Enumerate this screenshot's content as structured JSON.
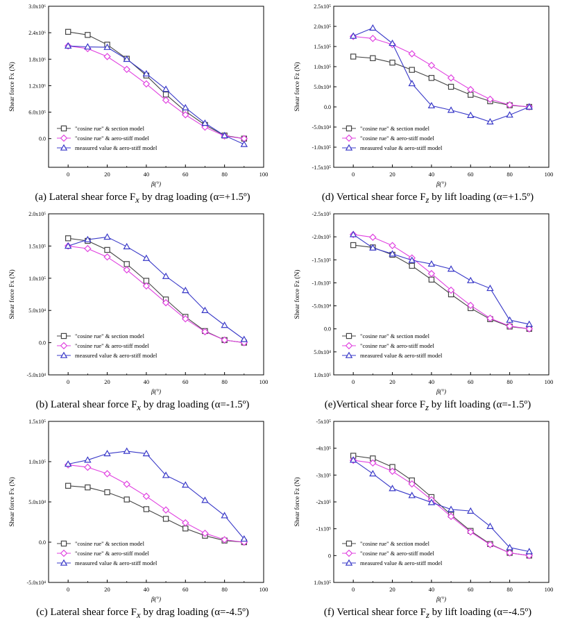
{
  "figure": {
    "series_names": [
      "\"cosine rue\" & section model",
      "\"cosine rue\" & aero-stiff model",
      "measured value & aero-stiff model"
    ],
    "colors": {
      "section": "#444444",
      "aero": "#e040e0",
      "measured": "#3838c8",
      "axis": "#000000"
    }
  },
  "chart_data": [
    {
      "type": "line",
      "id": "a",
      "caption": "(a) Lateral shear force F",
      "caption_sub": "x",
      "caption_tail": " by drag loading (α=+1.5º)",
      "ylabel": "Shear force Fx (N)",
      "xlabel": "β(°)",
      "xlim": [
        -10,
        100
      ],
      "ylim": [
        -650000,
        3000000
      ],
      "xticks": [
        0,
        20,
        40,
        60,
        80,
        100
      ],
      "xtick_labels": [
        "0",
        "20",
        "40",
        "60",
        "80",
        "100"
      ],
      "yticks": [
        0,
        600000,
        1200000,
        1800000,
        2400000,
        3000000
      ],
      "ytick_labels": [
        "0.0",
        "6.0x10⁵",
        "1.2x10⁶",
        "1.8x10⁶",
        "2.4x10⁶",
        "3.0x10⁶"
      ],
      "legend": "bottom-left",
      "x": [
        0,
        10,
        20,
        30,
        40,
        50,
        60,
        70,
        80,
        90
      ],
      "series": [
        {
          "name": "\"cosine rue\" & section model",
          "marker": "square",
          "values": [
            2420000,
            2350000,
            2130000,
            1810000,
            1430000,
            1000000,
            620000,
            310000,
            70000,
            0
          ]
        },
        {
          "name": "\"cosine rue\" & aero-stiff model",
          "marker": "diamond",
          "values": [
            2100000,
            2040000,
            1860000,
            1570000,
            1240000,
            870000,
            540000,
            260000,
            60000,
            0
          ]
        },
        {
          "name": "measured value & aero-stiff model",
          "marker": "triangle",
          "values": [
            2100000,
            2080000,
            2070000,
            1800000,
            1470000,
            1120000,
            700000,
            350000,
            70000,
            -130000
          ]
        }
      ]
    },
    {
      "type": "line",
      "id": "d",
      "caption": "(d) Vertical shear force F",
      "caption_sub": "z",
      "caption_tail": " by lift loading (α=+1.5º)",
      "ylabel": "Shear force Fz (N)",
      "xlabel": "β(°)",
      "xlim": [
        -10,
        100
      ],
      "ylim": [
        -150000,
        250000
      ],
      "xticks": [
        0,
        20,
        40,
        60,
        80,
        100
      ],
      "xtick_labels": [
        "0",
        "20",
        "40",
        "60",
        "80",
        "100"
      ],
      "yticks": [
        -150000,
        -100000,
        -50000,
        0,
        50000,
        100000,
        150000,
        200000,
        250000
      ],
      "ytick_labels": [
        "-1.5x10⁵",
        "-1.0x10⁵",
        "-5.0x10⁴",
        "0.0",
        "5.0x10⁴",
        "1.0x10⁵",
        "1.5x10⁵",
        "2.0x10⁵",
        "2.5x10⁵"
      ],
      "legend": "bottom-left",
      "x": [
        0,
        10,
        20,
        30,
        40,
        50,
        60,
        70,
        80,
        90
      ],
      "series": [
        {
          "name": "\"cosine rue\" & section model",
          "marker": "square",
          "values": [
            125000,
            121000,
            110000,
            92000,
            72000,
            50000,
            30000,
            14000,
            4000,
            0
          ]
        },
        {
          "name": "\"cosine rue\" & aero-stiff model",
          "marker": "diamond",
          "values": [
            175000,
            170000,
            155000,
            132000,
            103000,
            72000,
            43000,
            19000,
            5000,
            0
          ]
        },
        {
          "name": "measured value & aero-stiff model",
          "marker": "triangle",
          "values": [
            176000,
            196000,
            158000,
            58000,
            3000,
            -8000,
            -21000,
            -37000,
            -20000,
            0
          ]
        }
      ]
    },
    {
      "type": "line",
      "id": "b",
      "caption": "(b) Lateral shear force F",
      "caption_sub": "x",
      "caption_tail": " by drag loading (α=-1.5º)",
      "ylabel": "Shear force Fx (N)",
      "xlabel": "β(°)",
      "xlim": [
        -10,
        100
      ],
      "ylim": [
        -50000,
        200000
      ],
      "xticks": [
        0,
        20,
        40,
        60,
        80,
        100
      ],
      "xtick_labels": [
        "0",
        "20",
        "40",
        "60",
        "80",
        "100"
      ],
      "yticks": [
        -50000,
        0,
        50000,
        100000,
        150000,
        200000
      ],
      "ytick_labels": [
        "-5.0x10⁴",
        "0.0",
        "5.0x10⁴",
        "1.0x10⁵",
        "1.5x10⁵",
        "2.0x10⁵"
      ],
      "legend": "bottom-left",
      "x": [
        0,
        10,
        20,
        30,
        40,
        50,
        60,
        70,
        80,
        90
      ],
      "series": [
        {
          "name": "\"cosine rue\" & section model",
          "marker": "square",
          "values": [
            162000,
            158000,
            144000,
            122000,
            96000,
            67000,
            40000,
            18000,
            4000,
            0
          ]
        },
        {
          "name": "\"cosine rue\" & aero-stiff model",
          "marker": "diamond",
          "values": [
            150000,
            146000,
            133000,
            113000,
            88000,
            62000,
            37000,
            17000,
            4000,
            0
          ]
        },
        {
          "name": "measured value & aero-stiff model",
          "marker": "triangle",
          "values": [
            150000,
            160000,
            164000,
            149000,
            131000,
            103000,
            81000,
            50000,
            27000,
            5000
          ]
        }
      ]
    },
    {
      "type": "line",
      "id": "e",
      "caption": "(e)Vertical shear force F",
      "caption_sub": "z",
      "caption_tail": " by lift loading (α=-1.5º)",
      "ylabel": "Shear force Fz (N)",
      "xlabel": "β(°)",
      "xlim": [
        -10,
        100
      ],
      "ylim": [
        100000,
        -250000
      ],
      "xticks": [
        0,
        20,
        40,
        60,
        80,
        100
      ],
      "xtick_labels": [
        "0",
        "20",
        "40",
        "60",
        "80",
        "100"
      ],
      "yticks": [
        100000,
        50000,
        0,
        -50000,
        -100000,
        -150000,
        -200000,
        -250000
      ],
      "ytick_labels": [
        "1.0x10⁵",
        "5.0x10⁴",
        "0.0",
        "-5.0x10⁴",
        "-1.0x10⁵",
        "-1.5x10⁵",
        "-2.0x10⁵",
        "-2.5x10⁵"
      ],
      "legend": "bottom-left",
      "x": [
        0,
        10,
        20,
        30,
        40,
        50,
        60,
        70,
        80,
        90
      ],
      "series": [
        {
          "name": "\"cosine rue\" & section model",
          "marker": "square",
          "values": [
            -182000,
            -177000,
            -161000,
            -137000,
            -107000,
            -75000,
            -45000,
            -21000,
            -5000,
            0
          ]
        },
        {
          "name": "\"cosine rue\" & aero-stiff model",
          "marker": "diamond",
          "values": [
            -205000,
            -199000,
            -181000,
            -154000,
            -120000,
            -84000,
            -51000,
            -23000,
            -6000,
            0
          ]
        },
        {
          "name": "measured value & aero-stiff model",
          "marker": "triangle",
          "values": [
            -205000,
            -176000,
            -163000,
            -149000,
            -141000,
            -130000,
            -105000,
            -88000,
            -19000,
            -10000
          ]
        }
      ]
    },
    {
      "type": "line",
      "id": "c",
      "caption": "(c) Lateral shear force F",
      "caption_sub": "x",
      "caption_tail": " by drag loading (α=-4.5º)",
      "ylabel": "Shear force Fx (N)",
      "xlabel": "β(°)",
      "xlim": [
        -10,
        100
      ],
      "ylim": [
        -50000,
        150000
      ],
      "xticks": [
        0,
        20,
        40,
        60,
        80,
        100
      ],
      "xtick_labels": [
        "0",
        "20",
        "40",
        "60",
        "80",
        "100"
      ],
      "yticks": [
        -50000,
        0,
        50000,
        100000,
        150000
      ],
      "ytick_labels": [
        "-5.0x10⁴",
        "0.0",
        "5.0x10⁴",
        "1.0x10⁵",
        "1.5x10⁵"
      ],
      "legend": "bottom-left",
      "x": [
        0,
        10,
        20,
        30,
        40,
        50,
        60,
        70,
        80,
        90
      ],
      "series": [
        {
          "name": "\"cosine rue\" & section model",
          "marker": "square",
          "values": [
            70000,
            68000,
            62000,
            53000,
            41000,
            29000,
            17000,
            8000,
            2000,
            0
          ]
        },
        {
          "name": "\"cosine rue\" & aero-stiff model",
          "marker": "diamond",
          "values": [
            96000,
            93000,
            85000,
            72000,
            57000,
            40000,
            24000,
            11000,
            3000,
            0
          ]
        },
        {
          "name": "measured value & aero-stiff model",
          "marker": "triangle",
          "values": [
            97000,
            102000,
            110000,
            113000,
            110000,
            83000,
            71000,
            52000,
            33000,
            4000
          ]
        }
      ]
    },
    {
      "type": "line",
      "id": "f",
      "caption": "(f) Vertical shear force F",
      "caption_sub": "z",
      "caption_tail": " by lift loading (α=-4.5º)",
      "ylabel": "Shear force Fz (N)",
      "xlabel": "β(°)",
      "xlim": [
        -10,
        100
      ],
      "ylim": [
        100000,
        -500000
      ],
      "xticks": [
        0,
        20,
        40,
        60,
        80,
        100
      ],
      "xtick_labels": [
        "0",
        "20",
        "40",
        "60",
        "80",
        "100"
      ],
      "yticks": [
        100000,
        0,
        -100000,
        -200000,
        -300000,
        -400000,
        -500000
      ],
      "ytick_labels": [
        "1.0x10⁵",
        "0",
        "-1x10⁵",
        "-2x10⁵",
        "-3x10⁵",
        "-4x10⁵",
        "-5x10⁵"
      ],
      "legend": "bottom-left",
      "x": [
        0,
        10,
        20,
        30,
        40,
        50,
        60,
        70,
        80,
        90
      ],
      "series": [
        {
          "name": "\"cosine rue\" & section model",
          "marker": "square",
          "values": [
            -372000,
            -362000,
            -330000,
            -280000,
            -218000,
            -152000,
            -92000,
            -43000,
            -10000,
            0
          ]
        },
        {
          "name": "\"cosine rue\" & aero-stiff model",
          "marker": "diamond",
          "values": [
            -355000,
            -345000,
            -314000,
            -267000,
            -208000,
            -146000,
            -88000,
            -41000,
            -10000,
            0
          ]
        },
        {
          "name": "measured value & aero-stiff model",
          "marker": "triangle",
          "values": [
            -356000,
            -305000,
            -250000,
            -224000,
            -198000,
            -172000,
            -166000,
            -109000,
            -30000,
            -15000
          ]
        }
      ]
    }
  ]
}
